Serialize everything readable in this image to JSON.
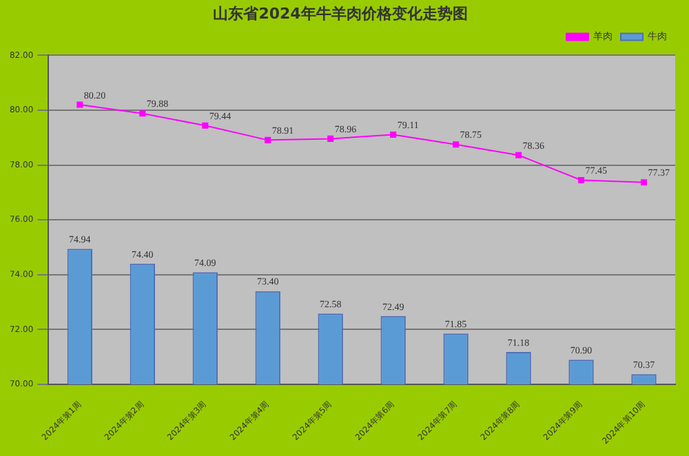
{
  "chart_data": {
    "type": "bar",
    "title": "山东省2024年牛羊肉价格变化走势图",
    "categories": [
      "2024年第1周",
      "2024年第2周",
      "2024年第3周",
      "2024年第4周",
      "2024年第5周",
      "2024年第6周",
      "2024年第7周",
      "2024年第8周",
      "2024年第9周",
      "2024年第10周"
    ],
    "series": [
      {
        "name": "牛肉",
        "color": "#5b9bd5",
        "values": [
          74.94,
          74.4,
          74.09,
          73.4,
          72.58,
          72.49,
          71.85,
          71.18,
          70.9,
          70.37
        ],
        "value_labels": [
          "74.94",
          "74.40",
          "74.09",
          "73.40",
          "72.58",
          "72.49",
          "71.85",
          "71.18",
          "70.90",
          "70.37"
        ]
      },
      {
        "name": "羊肉",
        "type": "line",
        "color": "#ff00ff",
        "marker": "square",
        "values": [
          80.2,
          79.88,
          79.44,
          78.91,
          78.96,
          79.11,
          78.75,
          78.36,
          77.45,
          77.37
        ],
        "value_labels": [
          "80.20",
          "79.88",
          "79.44",
          "78.91",
          "78.96",
          "79.11",
          "78.75",
          "78.36",
          "77.45",
          "77.37"
        ]
      }
    ],
    "ylim": [
      70,
      82
    ],
    "yticks": [
      {
        "value": 70,
        "label": "70.00"
      },
      {
        "value": 72,
        "label": "72.00"
      },
      {
        "value": 74,
        "label": "74.00"
      },
      {
        "value": 76,
        "label": "76.00"
      },
      {
        "value": 78,
        "label": "78.00"
      },
      {
        "value": 80,
        "label": "80.00"
      },
      {
        "value": 82,
        "label": "82.00"
      }
    ],
    "grid": "y",
    "legend": "top right"
  }
}
